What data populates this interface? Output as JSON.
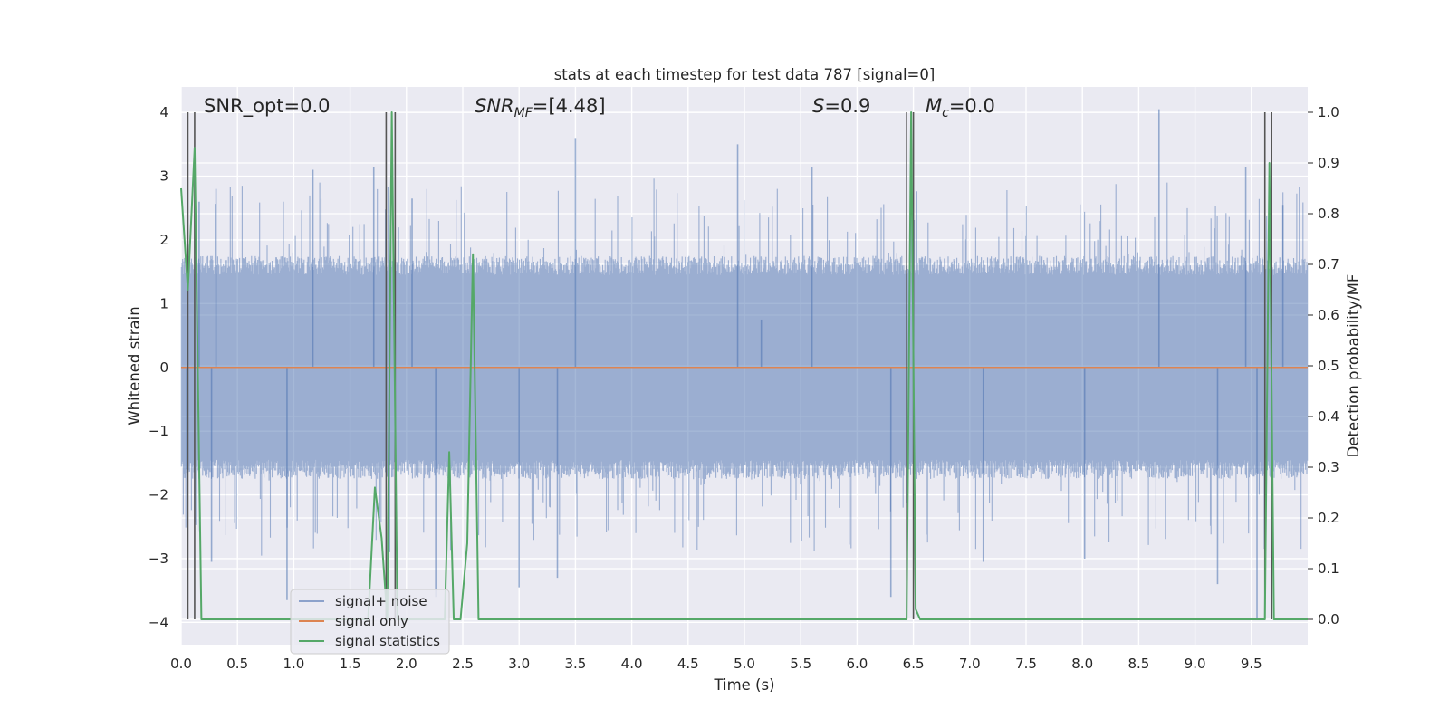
{
  "chart_data": {
    "type": "line",
    "title": "stats at each timestep for test data 787 [signal=0]",
    "xlabel": "Time (s)",
    "ylabel": "Whitened strain",
    "ylabel_right": "Detection probability/MF",
    "xlim": [
      0,
      10
    ],
    "ylim": [
      -4.35,
      4.4
    ],
    "ylim_right": [
      -0.05,
      1.05
    ],
    "xticks": [
      0.0,
      0.5,
      1.0,
      1.5,
      2.0,
      2.5,
      3.0,
      3.5,
      4.0,
      4.5,
      5.0,
      5.5,
      6.0,
      6.5,
      7.0,
      7.5,
      8.0,
      8.5,
      9.0,
      9.5
    ],
    "xtick_labels": [
      "0.0",
      "0.5",
      "1.0",
      "1.5",
      "2.0",
      "2.5",
      "3.0",
      "3.5",
      "4.0",
      "4.5",
      "5.0",
      "5.5",
      "6.0",
      "6.5",
      "7.0",
      "7.5",
      "8.0",
      "8.5",
      "9.0",
      "9.5"
    ],
    "yticks": [
      -4,
      -3,
      -2,
      -1,
      0,
      1,
      2,
      3,
      4
    ],
    "ytick_labels": [
      "−4",
      "−3",
      "−2",
      "−1",
      "0",
      "1",
      "2",
      "3",
      "4"
    ],
    "yticks_right": [
      0.0,
      0.1,
      0.2,
      0.3,
      0.4,
      0.5,
      0.6,
      0.7,
      0.8,
      0.9,
      1.0
    ],
    "ytick_labels_right": [
      "0.0",
      "0.1",
      "0.2",
      "0.3",
      "0.4",
      "0.5",
      "0.6",
      "0.7",
      "0.8",
      "0.9",
      "1.0"
    ],
    "grid": true,
    "legend_position": "lower-left",
    "annotations": {
      "snr_opt": "SNR_opt=0.0",
      "snr_mf_main": "SNR",
      "snr_mf_sub": "MF",
      "snr_mf_val": "=[4.48]",
      "s_main": "S",
      "s_val": "=0.9",
      "mc_main": "M",
      "mc_sub": "c",
      "mc_val": "=0.0"
    },
    "colors": {
      "noise": "#4c72b0",
      "signal": "#dd8452",
      "stats": "#55a868",
      "vlines": "#555555",
      "background": "#eaeaf2"
    },
    "series": [
      {
        "name": "signal+ noise",
        "axis": "left",
        "style": "noise envelope",
        "envelope_typical": [
          -1.6,
          1.6
        ],
        "peaks": [
          {
            "x": 0.05,
            "y": -1.6
          },
          {
            "x": 0.16,
            "y": 2.6
          },
          {
            "x": 0.27,
            "y": -3.05
          },
          {
            "x": 0.31,
            "y": 2.8
          },
          {
            "x": 0.94,
            "y": -3.65
          },
          {
            "x": 1.17,
            "y": 3.1
          },
          {
            "x": 1.71,
            "y": 3.15
          },
          {
            "x": 1.85,
            "y": -2.9
          },
          {
            "x": 2.05,
            "y": 2.65
          },
          {
            "x": 2.26,
            "y": -3.6
          },
          {
            "x": 3.0,
            "y": -3.45
          },
          {
            "x": 3.5,
            "y": 3.6
          },
          {
            "x": 3.34,
            "y": -3.3
          },
          {
            "x": 4.94,
            "y": 3.5
          },
          {
            "x": 5.15,
            "y": 0.75
          },
          {
            "x": 5.6,
            "y": 3.15
          },
          {
            "x": 6.3,
            "y": -3.6
          },
          {
            "x": 7.12,
            "y": -3.05
          },
          {
            "x": 8.02,
            "y": -3.0
          },
          {
            "x": 8.68,
            "y": 4.05
          },
          {
            "x": 9.2,
            "y": -3.4
          },
          {
            "x": 9.45,
            "y": 3.15
          },
          {
            "x": 9.55,
            "y": -3.95
          },
          {
            "x": 9.78,
            "y": 2.55
          }
        ]
      },
      {
        "name": "signal only",
        "axis": "left",
        "x": [
          0,
          10
        ],
        "y": [
          0,
          0
        ]
      },
      {
        "name": "signal statistics",
        "axis": "right",
        "x": [
          0.0,
          0.06,
          0.12,
          0.18,
          1.66,
          1.72,
          1.78,
          1.83,
          1.87,
          1.92,
          2.34,
          2.38,
          2.42,
          2.48,
          2.54,
          2.59,
          2.64,
          2.7,
          6.44,
          6.48,
          6.52,
          6.56,
          6.6,
          9.62,
          9.66,
          9.7,
          9.74,
          9.78,
          10.0
        ],
        "y": [
          0.85,
          0.65,
          0.93,
          0.0,
          0.0,
          0.26,
          0.16,
          0.0,
          1.0,
          0.0,
          0.0,
          0.33,
          0.0,
          0.0,
          0.15,
          0.72,
          0.0,
          0.0,
          0.0,
          1.0,
          0.02,
          0.0,
          0.0,
          0.0,
          0.9,
          0.0,
          0.0,
          0.0,
          0.0
        ]
      }
    ],
    "vertical_lines_x": [
      0.06,
      0.12,
      1.82,
      1.9,
      6.44,
      6.5,
      9.62,
      9.68
    ]
  }
}
